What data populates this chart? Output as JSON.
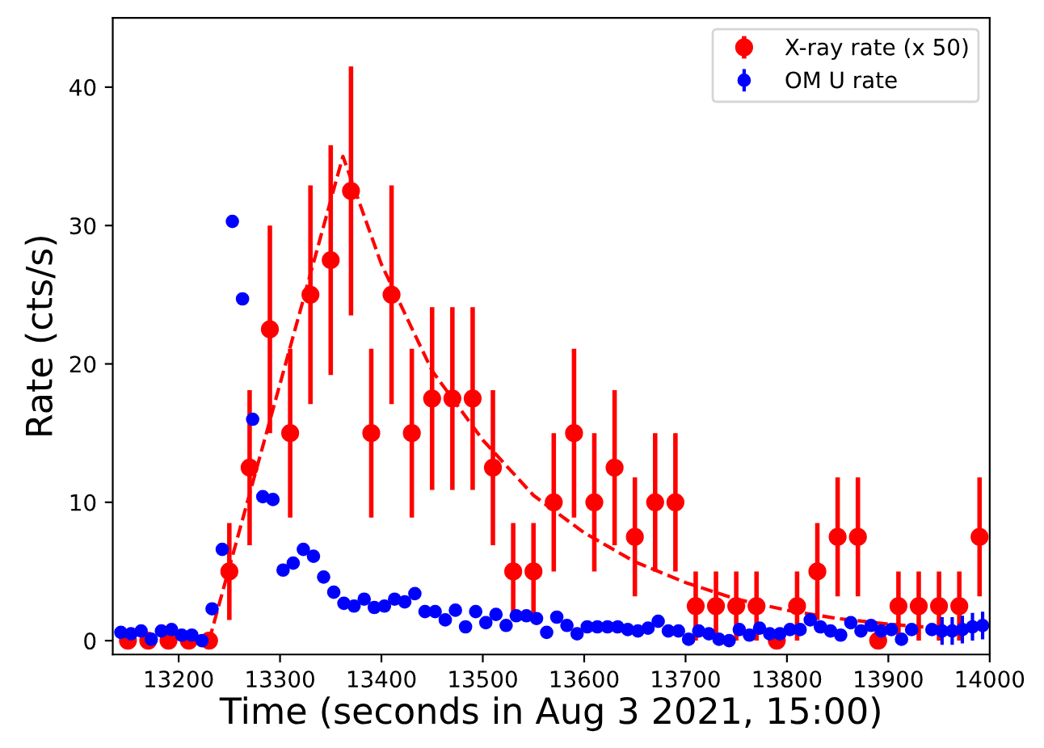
{
  "chart_data": {
    "type": "scatter",
    "xlabel": "Time (seconds in Aug 3 2021, 15:00)",
    "ylabel": "Rate (cts/s)",
    "xlim": [
      13135,
      14000
    ],
    "ylim": [
      -1,
      45
    ],
    "xticks": [
      13200,
      13300,
      13400,
      13500,
      13600,
      13700,
      13800,
      13900,
      14000
    ],
    "yticks": [
      0,
      10,
      20,
      30,
      40
    ],
    "legend": "top right",
    "grid": false,
    "marker": "circle",
    "series": [
      {
        "name": "X-ray rate (x 50)",
        "color": "#ff0000",
        "x": [
          13150,
          13170,
          13190,
          13210,
          13230,
          13250,
          13270,
          13290,
          13310,
          13330,
          13350,
          13370,
          13390,
          13410,
          13430,
          13450,
          13470,
          13490,
          13510,
          13530,
          13550,
          13570,
          13590,
          13610,
          13630,
          13650,
          13670,
          13690,
          13710,
          13730,
          13750,
          13770,
          13790,
          13810,
          13830,
          13850,
          13870,
          13890,
          13910,
          13930,
          13950,
          13970,
          13990
        ],
        "values": [
          0,
          0,
          0,
          0,
          0,
          5,
          12.5,
          22.5,
          15,
          25,
          27.5,
          32.5,
          15,
          25,
          15,
          17.5,
          17.5,
          17.5,
          12.5,
          5,
          5,
          10,
          15,
          10,
          12.5,
          7.5,
          10,
          10,
          2.5,
          2.5,
          2.5,
          2.5,
          0,
          2.5,
          5,
          7.5,
          7.5,
          0,
          2.5,
          2.5,
          2.5,
          2.5,
          7.5
        ],
        "errors": [
          null,
          null,
          null,
          null,
          null,
          3.5,
          5.6,
          7.5,
          6.1,
          7.9,
          8.3,
          9.0,
          6.1,
          7.9,
          6.1,
          6.6,
          6.6,
          6.6,
          5.6,
          3.5,
          3.5,
          5,
          6.1,
          5,
          5.6,
          4.3,
          5,
          5,
          2.5,
          2.5,
          2.5,
          2.5,
          null,
          2.5,
          3.5,
          4.3,
          4.3,
          null,
          2.5,
          2.5,
          2.5,
          2.5,
          4.3
        ]
      },
      {
        "name": "OM U rate",
        "color": "#0000ff",
        "x": [
          13143,
          13153,
          13163,
          13173,
          13183,
          13193,
          13203,
          13213,
          13223,
          13233,
          13243,
          13253,
          13263,
          13273,
          13283,
          13293,
          13303,
          13313,
          13323,
          13333,
          13343,
          13353,
          13363,
          13373,
          13383,
          13393,
          13403,
          13413,
          13423,
          13433,
          13443,
          13453,
          13463,
          13473,
          13483,
          13493,
          13503,
          13513,
          13523,
          13533,
          13543,
          13553,
          13563,
          13573,
          13583,
          13593,
          13603,
          13613,
          13623,
          13633,
          13643,
          13653,
          13663,
          13673,
          13683,
          13693,
          13703,
          13713,
          13723,
          13733,
          13743,
          13753,
          13763,
          13773,
          13783,
          13793,
          13803,
          13813,
          13823,
          13833,
          13843,
          13853,
          13863,
          13873,
          13883,
          13893,
          13903,
          13913,
          13923,
          13933,
          13943,
          13953,
          13963,
          13973,
          13983,
          13993
        ],
        "values": [
          0.6,
          0.5,
          0.7,
          0.1,
          0.7,
          0.8,
          0.4,
          0.4,
          0.0,
          2.3,
          6.6,
          30.3,
          24.7,
          16.0,
          10.4,
          10.2,
          5.1,
          5.6,
          6.6,
          6.1,
          4.6,
          3.5,
          2.7,
          2.5,
          3.0,
          2.4,
          2.5,
          3.0,
          2.8,
          3.4,
          2.1,
          2.1,
          1.5,
          2.2,
          1.0,
          2.1,
          1.3,
          1.9,
          1.1,
          1.8,
          1.8,
          1.6,
          0.6,
          1.7,
          1.1,
          0.5,
          1.0,
          1.0,
          1.0,
          1.0,
          0.8,
          0.7,
          0.9,
          1.4,
          0.7,
          0.7,
          0.1,
          0.7,
          0.5,
          0.1,
          0.0,
          0.8,
          0.4,
          0.9,
          0.5,
          0.5,
          0.8,
          0.8,
          1.5,
          1.0,
          0.7,
          0.4,
          1.3,
          0.7,
          1.1,
          0.7,
          0.8,
          0.1,
          0.8,
          null,
          0.8,
          0.7,
          0.7,
          0.8,
          1.0,
          1.1
        ],
        "errors": [
          0.4,
          0.4,
          0.4,
          0.4,
          0.4,
          0.4,
          0.4,
          0.4,
          0.4,
          0.4,
          0.4,
          0.4,
          0.4,
          0.4,
          0.4,
          0.4,
          0.4,
          0.4,
          0.4,
          0.4,
          0.4,
          0.4,
          0.4,
          0.4,
          0.4,
          0.4,
          0.4,
          0.4,
          0.4,
          0.4,
          0.4,
          0.4,
          0.4,
          0.4,
          0.4,
          0.4,
          0.4,
          0.4,
          0.4,
          0.4,
          0.4,
          0.4,
          0.4,
          0.4,
          0.4,
          0.4,
          0.4,
          0.4,
          0.4,
          0.4,
          0.4,
          0.4,
          0.4,
          0.4,
          0.4,
          0.4,
          0.4,
          0.4,
          0.4,
          0.4,
          0.4,
          0.4,
          0.4,
          0.4,
          0.4,
          0.4,
          0.4,
          0.4,
          0.4,
          0.4,
          0.4,
          0.4,
          0.4,
          0.4,
          0.4,
          0.4,
          0.4,
          0.4,
          0.4,
          null,
          0.4,
          1.0,
          1.0,
          1.0,
          1.0,
          1.0
        ]
      },
      {
        "type": "line",
        "line_style": "dashed",
        "marker": "none",
        "color": "#ff0000",
        "x": [
          13230,
          13362,
          13400,
          13450,
          13500,
          13550,
          13600,
          13650,
          13700,
          13750,
          13800,
          13850,
          13900,
          13950
        ],
        "values": [
          0,
          35,
          27.2,
          19.5,
          14.5,
          10.5,
          7.8,
          5.7,
          4.2,
          3.0,
          2.2,
          1.6,
          1.2,
          0.9
        ]
      }
    ]
  }
}
